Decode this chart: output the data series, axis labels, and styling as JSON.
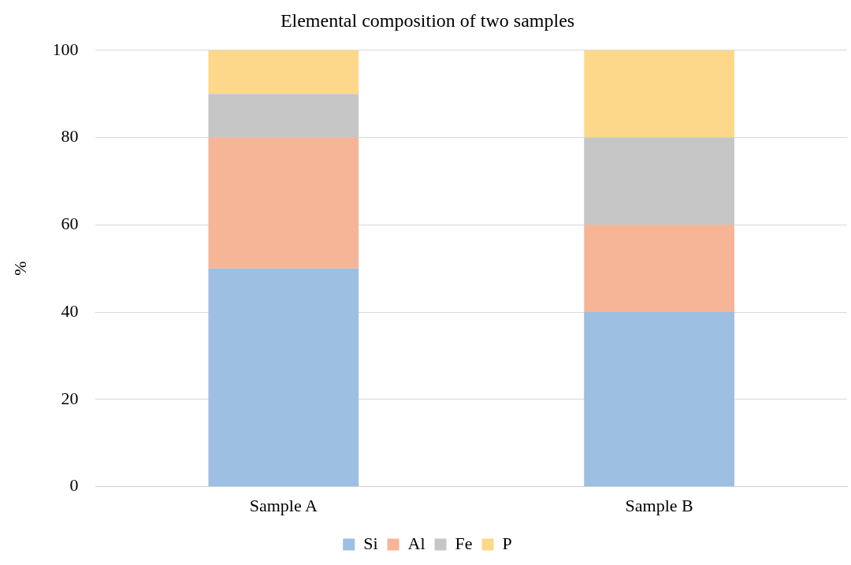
{
  "chart_data": {
    "type": "bar",
    "title": "Elemental composition of two samples",
    "ylabel": "%",
    "categories": [
      "Sample A",
      "Sample B"
    ],
    "series": [
      {
        "name": "Si",
        "color": "#9dbfe2",
        "values": [
          50,
          40
        ]
      },
      {
        "name": "Al",
        "color": "#f6b597",
        "values": [
          30,
          20
        ]
      },
      {
        "name": "Fe",
        "color": "#c6c6c6",
        "values": [
          10,
          20
        ]
      },
      {
        "name": "P",
        "color": "#fdd88a",
        "values": [
          10,
          20
        ]
      }
    ],
    "stacked": true,
    "ylim": [
      0,
      100
    ],
    "yticks": [
      0,
      20,
      40,
      60,
      80,
      100
    ],
    "grid": "y",
    "legend": "bottom"
  }
}
